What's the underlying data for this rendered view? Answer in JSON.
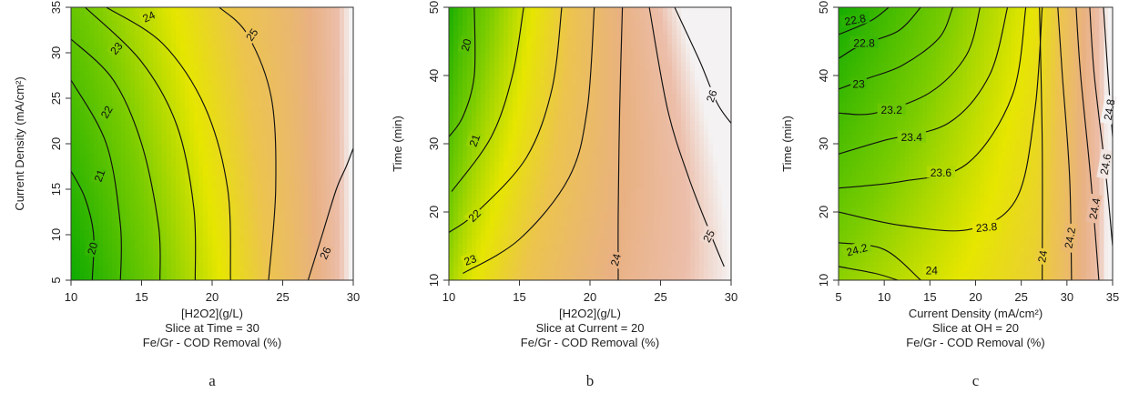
{
  "chart_data": [
    {
      "type": "heatmap",
      "subtype": "contour",
      "panel_letter": "a",
      "xlabel": "[H2O2](g/L)",
      "ylabel": "Current Density (mA/cm²)",
      "caption_lines": [
        "Slice at Time = 30",
        "Fe/Gr - COD Removal (%)"
      ],
      "xlim": [
        10,
        30
      ],
      "ylim": [
        5,
        35
      ],
      "xticks": [
        10,
        15,
        20,
        25,
        30
      ],
      "yticks": [
        5,
        10,
        15,
        20,
        25,
        30,
        35
      ],
      "colormap": "terrain (green → yellow → tan → white)",
      "contours": [
        {
          "level": "20",
          "points": [
            [
              11.5,
              5
            ],
            [
              11.6,
              10
            ],
            [
              11.0,
              14
            ],
            [
              10.0,
              17
            ]
          ],
          "label_at": [
            11.5,
            8.5
          ],
          "label_angle": -75
        },
        {
          "level": "21",
          "points": [
            [
              13.5,
              5
            ],
            [
              13.5,
              11
            ],
            [
              12.5,
              20
            ],
            [
              10.0,
              27
            ]
          ],
          "label_at": [
            12.0,
            16.5
          ],
          "label_angle": -70
        },
        {
          "level": "22",
          "points": [
            [
              16.3,
              5
            ],
            [
              16.2,
              11
            ],
            [
              15.0,
              20
            ],
            [
              13.0,
              27
            ],
            [
              10.0,
              31.5
            ]
          ],
          "label_at": [
            12.5,
            23.5
          ],
          "label_angle": -60
        },
        {
          "level": "23",
          "points": [
            [
              18.8,
              5
            ],
            [
              18.7,
              13
            ],
            [
              17.5,
              22
            ],
            [
              15.0,
              29
            ],
            [
              11.0,
              35
            ]
          ],
          "label_at": [
            13.2,
            30.5
          ],
          "label_angle": -50
        },
        {
          "level": "24",
          "points": [
            [
              21.3,
              5
            ],
            [
              21.1,
              15
            ],
            [
              19.5,
              24
            ],
            [
              16.5,
              31
            ],
            [
              12.5,
              35
            ]
          ],
          "label_at": [
            15.5,
            34.0
          ],
          "label_angle": -25
        },
        {
          "level": "25",
          "points": [
            [
              24.0,
              5
            ],
            [
              24.5,
              15
            ],
            [
              24.2,
              25
            ],
            [
              22.5,
              32
            ],
            [
              20.5,
              35
            ]
          ],
          "label_at": [
            22.8,
            32.0
          ],
          "label_angle": -55
        },
        {
          "level": "26",
          "points": [
            [
              26.8,
              5
            ],
            [
              27.8,
              10
            ],
            [
              28.8,
              15
            ],
            [
              29.5,
              17.5
            ],
            [
              30.0,
              19.5
            ]
          ],
          "label_at": [
            28.0,
            8.0
          ],
          "label_angle": -65
        }
      ]
    },
    {
      "type": "heatmap",
      "subtype": "contour",
      "panel_letter": "b",
      "xlabel": "[H2O2](g/L)",
      "ylabel": "Time (min)",
      "caption_lines": [
        "Slice at Current = 20",
        "Fe/Gr - COD Removal (%)"
      ],
      "xlim": [
        10,
        30
      ],
      "ylim": [
        10,
        50
      ],
      "xticks": [
        10,
        15,
        20,
        25,
        30
      ],
      "yticks": [
        10,
        20,
        30,
        40,
        50
      ],
      "colormap": "terrain (green → yellow → tan → white)",
      "contours": [
        {
          "level": "20",
          "points": [
            [
              11.8,
              50
            ],
            [
              11.8,
              40
            ],
            [
              11.0,
              34
            ],
            [
              10.0,
              31
            ]
          ],
          "label_at": [
            11.2,
            44.5
          ],
          "label_angle": -75
        },
        {
          "level": "21",
          "points": [
            [
              15.3,
              50
            ],
            [
              14.5,
              40
            ],
            [
              13.0,
              31
            ],
            [
              10.2,
              23
            ]
          ],
          "label_at": [
            11.8,
            30.5
          ],
          "label_angle": -70
        },
        {
          "level": "22",
          "points": [
            [
              18.0,
              50
            ],
            [
              17.3,
              38
            ],
            [
              15.5,
              28
            ],
            [
              12.0,
              20
            ],
            [
              10.0,
              17
            ]
          ],
          "label_at": [
            11.8,
            19.5
          ],
          "label_angle": -45
        },
        {
          "level": "23",
          "points": [
            [
              20.3,
              50
            ],
            [
              19.8,
              35
            ],
            [
              18.5,
              25
            ],
            [
              15.0,
              16
            ],
            [
              11.0,
              11
            ]
          ],
          "label_at": [
            11.5,
            13.0
          ],
          "label_angle": -20
        },
        {
          "level": "24",
          "points": [
            [
              22.3,
              50
            ],
            [
              22.1,
              35
            ],
            [
              22.0,
              20
            ],
            [
              22.0,
              10
            ]
          ],
          "label_at": [
            21.8,
            13.0
          ],
          "label_angle": -75
        },
        {
          "level": "25",
          "points": [
            [
              24.2,
              50
            ],
            [
              25.5,
              35
            ],
            [
              27.0,
              25
            ],
            [
              28.5,
              17
            ],
            [
              29.5,
              12
            ]
          ],
          "label_at": [
            28.4,
            16.5
          ],
          "label_angle": -60
        },
        {
          "level": "26",
          "points": [
            [
              26.0,
              50
            ],
            [
              27.8,
              42
            ],
            [
              29.0,
              36
            ],
            [
              30.0,
              33
            ]
          ],
          "label_at": [
            28.6,
            37.0
          ],
          "label_angle": -70
        }
      ]
    },
    {
      "type": "heatmap",
      "subtype": "contour",
      "panel_letter": "c",
      "xlabel": "Current Density (mA/cm²)",
      "ylabel": "Time (min)",
      "caption_lines": [
        "Slice at OH = 20",
        "Fe/Gr - COD Removal (%)"
      ],
      "xlim": [
        5,
        35
      ],
      "ylim": [
        10,
        50
      ],
      "xticks": [
        5,
        10,
        15,
        20,
        25,
        30,
        35
      ],
      "yticks": [
        10,
        20,
        30,
        40,
        50
      ],
      "colormap": "terrain (green → yellow → tan → white)",
      "contours": [
        {
          "level": "22.8",
          "points": [
            [
              5,
              46.0
            ],
            [
              8.5,
              48.0
            ],
            [
              10.5,
              50.0
            ]
          ],
          "label_at": [
            6.8,
            48.2
          ],
          "label_angle": -10
        },
        {
          "level": "22.8",
          "points": [
            [
              5,
              42.5
            ],
            [
              7.5,
              44.5
            ],
            [
              11.5,
              46.5
            ],
            [
              14.0,
              50.0
            ]
          ],
          "label_at": [
            7.8,
            44.8
          ],
          "label_angle": 0
        },
        {
          "level": "23",
          "points": [
            [
              5,
              38.0
            ],
            [
              8.0,
              39.5
            ],
            [
              12.0,
              41.5
            ],
            [
              16.0,
              45.5
            ],
            [
              17.5,
              50.0
            ]
          ],
          "label_at": [
            7.2,
            38.8
          ],
          "label_angle": 0
        },
        {
          "level": "23.2",
          "points": [
            [
              5,
              34.5
            ],
            [
              9.0,
              34.5
            ],
            [
              15.0,
              37.5
            ],
            [
              19.0,
              43.0
            ],
            [
              20.5,
              50.0
            ]
          ],
          "label_at": [
            10.8,
            35.0
          ],
          "label_angle": 0
        },
        {
          "level": "23.4",
          "points": [
            [
              5,
              28.5
            ],
            [
              10.0,
              30.5
            ],
            [
              17.0,
              33.0
            ],
            [
              21.5,
              40.0
            ],
            [
              23.5,
              50.0
            ]
          ],
          "label_at": [
            13.0,
            31.0
          ],
          "label_angle": 0
        },
        {
          "level": "23.6",
          "points": [
            [
              5,
              23.5
            ],
            [
              12.0,
              24.5
            ],
            [
              19.0,
              27.0
            ],
            [
              24.0,
              37.0
            ],
            [
              25.5,
              50.0
            ]
          ],
          "label_at": [
            16.2,
            25.8
          ],
          "label_angle": 0
        },
        {
          "level": "23.8",
          "points": [
            [
              5,
              20.0
            ],
            [
              12.0,
              18.0
            ],
            [
              19.5,
              17.5
            ],
            [
              24.5,
              22.0
            ],
            [
              26.5,
              35.0
            ],
            [
              27.3,
              50.0
            ]
          ],
          "label_at": [
            21.2,
            17.8
          ],
          "label_angle": -5
        },
        {
          "level": "24.2",
          "points": [
            [
              5,
              15.5
            ],
            [
              10.0,
              14.5
            ],
            [
              14.0,
              10.0
            ]
          ],
          "label_at": [
            7.0,
            14.5
          ],
          "label_angle": -15
        },
        {
          "level": "24",
          "points": [
            [
              5,
              12.0
            ],
            [
              9.0,
              11.0
            ],
            [
              11.5,
              10.0
            ]
          ],
          "label_at": [
            15.2,
            11.5
          ],
          "label_angle": 0
        },
        {
          "level": "24",
          "points": [
            [
              27.3,
              10.0
            ],
            [
              27.3,
              30.0
            ],
            [
              27.0,
              50.0
            ]
          ],
          "label_at": [
            27.3,
            13.5
          ],
          "label_angle": -80
        },
        {
          "level": "24.2",
          "points": [
            [
              30.5,
              10.0
            ],
            [
              30.3,
              25.0
            ],
            [
              29.5,
              40.0
            ],
            [
              29.0,
              50.0
            ]
          ],
          "label_at": [
            30.3,
            16.2
          ],
          "label_angle": -80
        },
        {
          "level": "24.4",
          "points": [
            [
              33.5,
              10.0
            ],
            [
              32.6,
              25.0
            ],
            [
              31.5,
              40.0
            ],
            [
              31.0,
              50.0
            ]
          ],
          "label_at": [
            33.0,
            20.5
          ],
          "label_angle": -80
        },
        {
          "level": "24.6",
          "points": [
            [
              35.0,
              15.0
            ],
            [
              34.3,
              25.0
            ],
            [
              33.0,
              40.0
            ],
            [
              32.5,
              50.0
            ]
          ],
          "label_at": [
            34.2,
            27.0
          ],
          "label_angle": -80
        },
        {
          "level": "24.8",
          "points": [
            [
              35.0,
              31.0
            ],
            [
              34.5,
              40.0
            ],
            [
              34.0,
              50.0
            ]
          ],
          "label_at": [
            34.6,
            35.0
          ],
          "label_angle": -80
        }
      ]
    }
  ]
}
